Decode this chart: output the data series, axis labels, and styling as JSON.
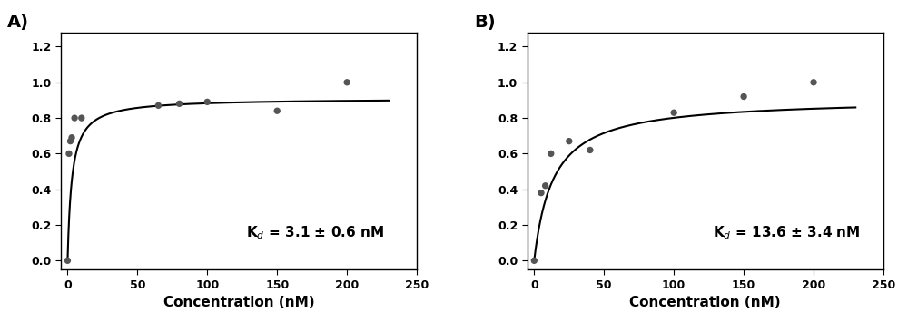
{
  "panel_A": {
    "scatter_x": [
      0,
      1,
      2,
      3,
      5,
      10,
      65,
      80,
      100,
      150,
      200
    ],
    "scatter_y": [
      0.0,
      0.6,
      0.67,
      0.69,
      0.8,
      0.8,
      0.87,
      0.88,
      0.89,
      0.84,
      1.0
    ],
    "Kd": 3.1,
    "Bmax": 0.91,
    "kd_label": "K$_d$ = 3.1 ± 0.6 nM",
    "xlabel": "Concentration (nM)",
    "xlim": [
      -5,
      250
    ],
    "ylim": [
      -0.05,
      1.28
    ],
    "yticks": [
      0.0,
      0.2,
      0.4,
      0.6,
      0.8,
      1.0,
      1.2
    ],
    "xticks": [
      0,
      50,
      100,
      150,
      200,
      250
    ],
    "panel_label": "A)"
  },
  "panel_B": {
    "scatter_x": [
      0,
      5,
      8,
      12,
      25,
      40,
      100,
      150,
      200
    ],
    "scatter_y": [
      0.0,
      0.38,
      0.42,
      0.6,
      0.67,
      0.62,
      0.83,
      0.92,
      1.0
    ],
    "Kd": 13.6,
    "Bmax": 0.91,
    "kd_label": "K$_d$ = 13.6 ± 3.4 nM",
    "xlabel": "Concentration (nM)",
    "xlim": [
      -5,
      250
    ],
    "ylim": [
      -0.05,
      1.28
    ],
    "yticks": [
      0.0,
      0.2,
      0.4,
      0.6,
      0.8,
      1.0,
      1.2
    ],
    "xticks": [
      0,
      50,
      100,
      150,
      200,
      250
    ],
    "panel_label": "B)"
  },
  "marker_color": "#555555",
  "line_color": "#000000",
  "background_color": "#ffffff",
  "fig_width": 10.0,
  "fig_height": 3.55,
  "dpi": 100
}
